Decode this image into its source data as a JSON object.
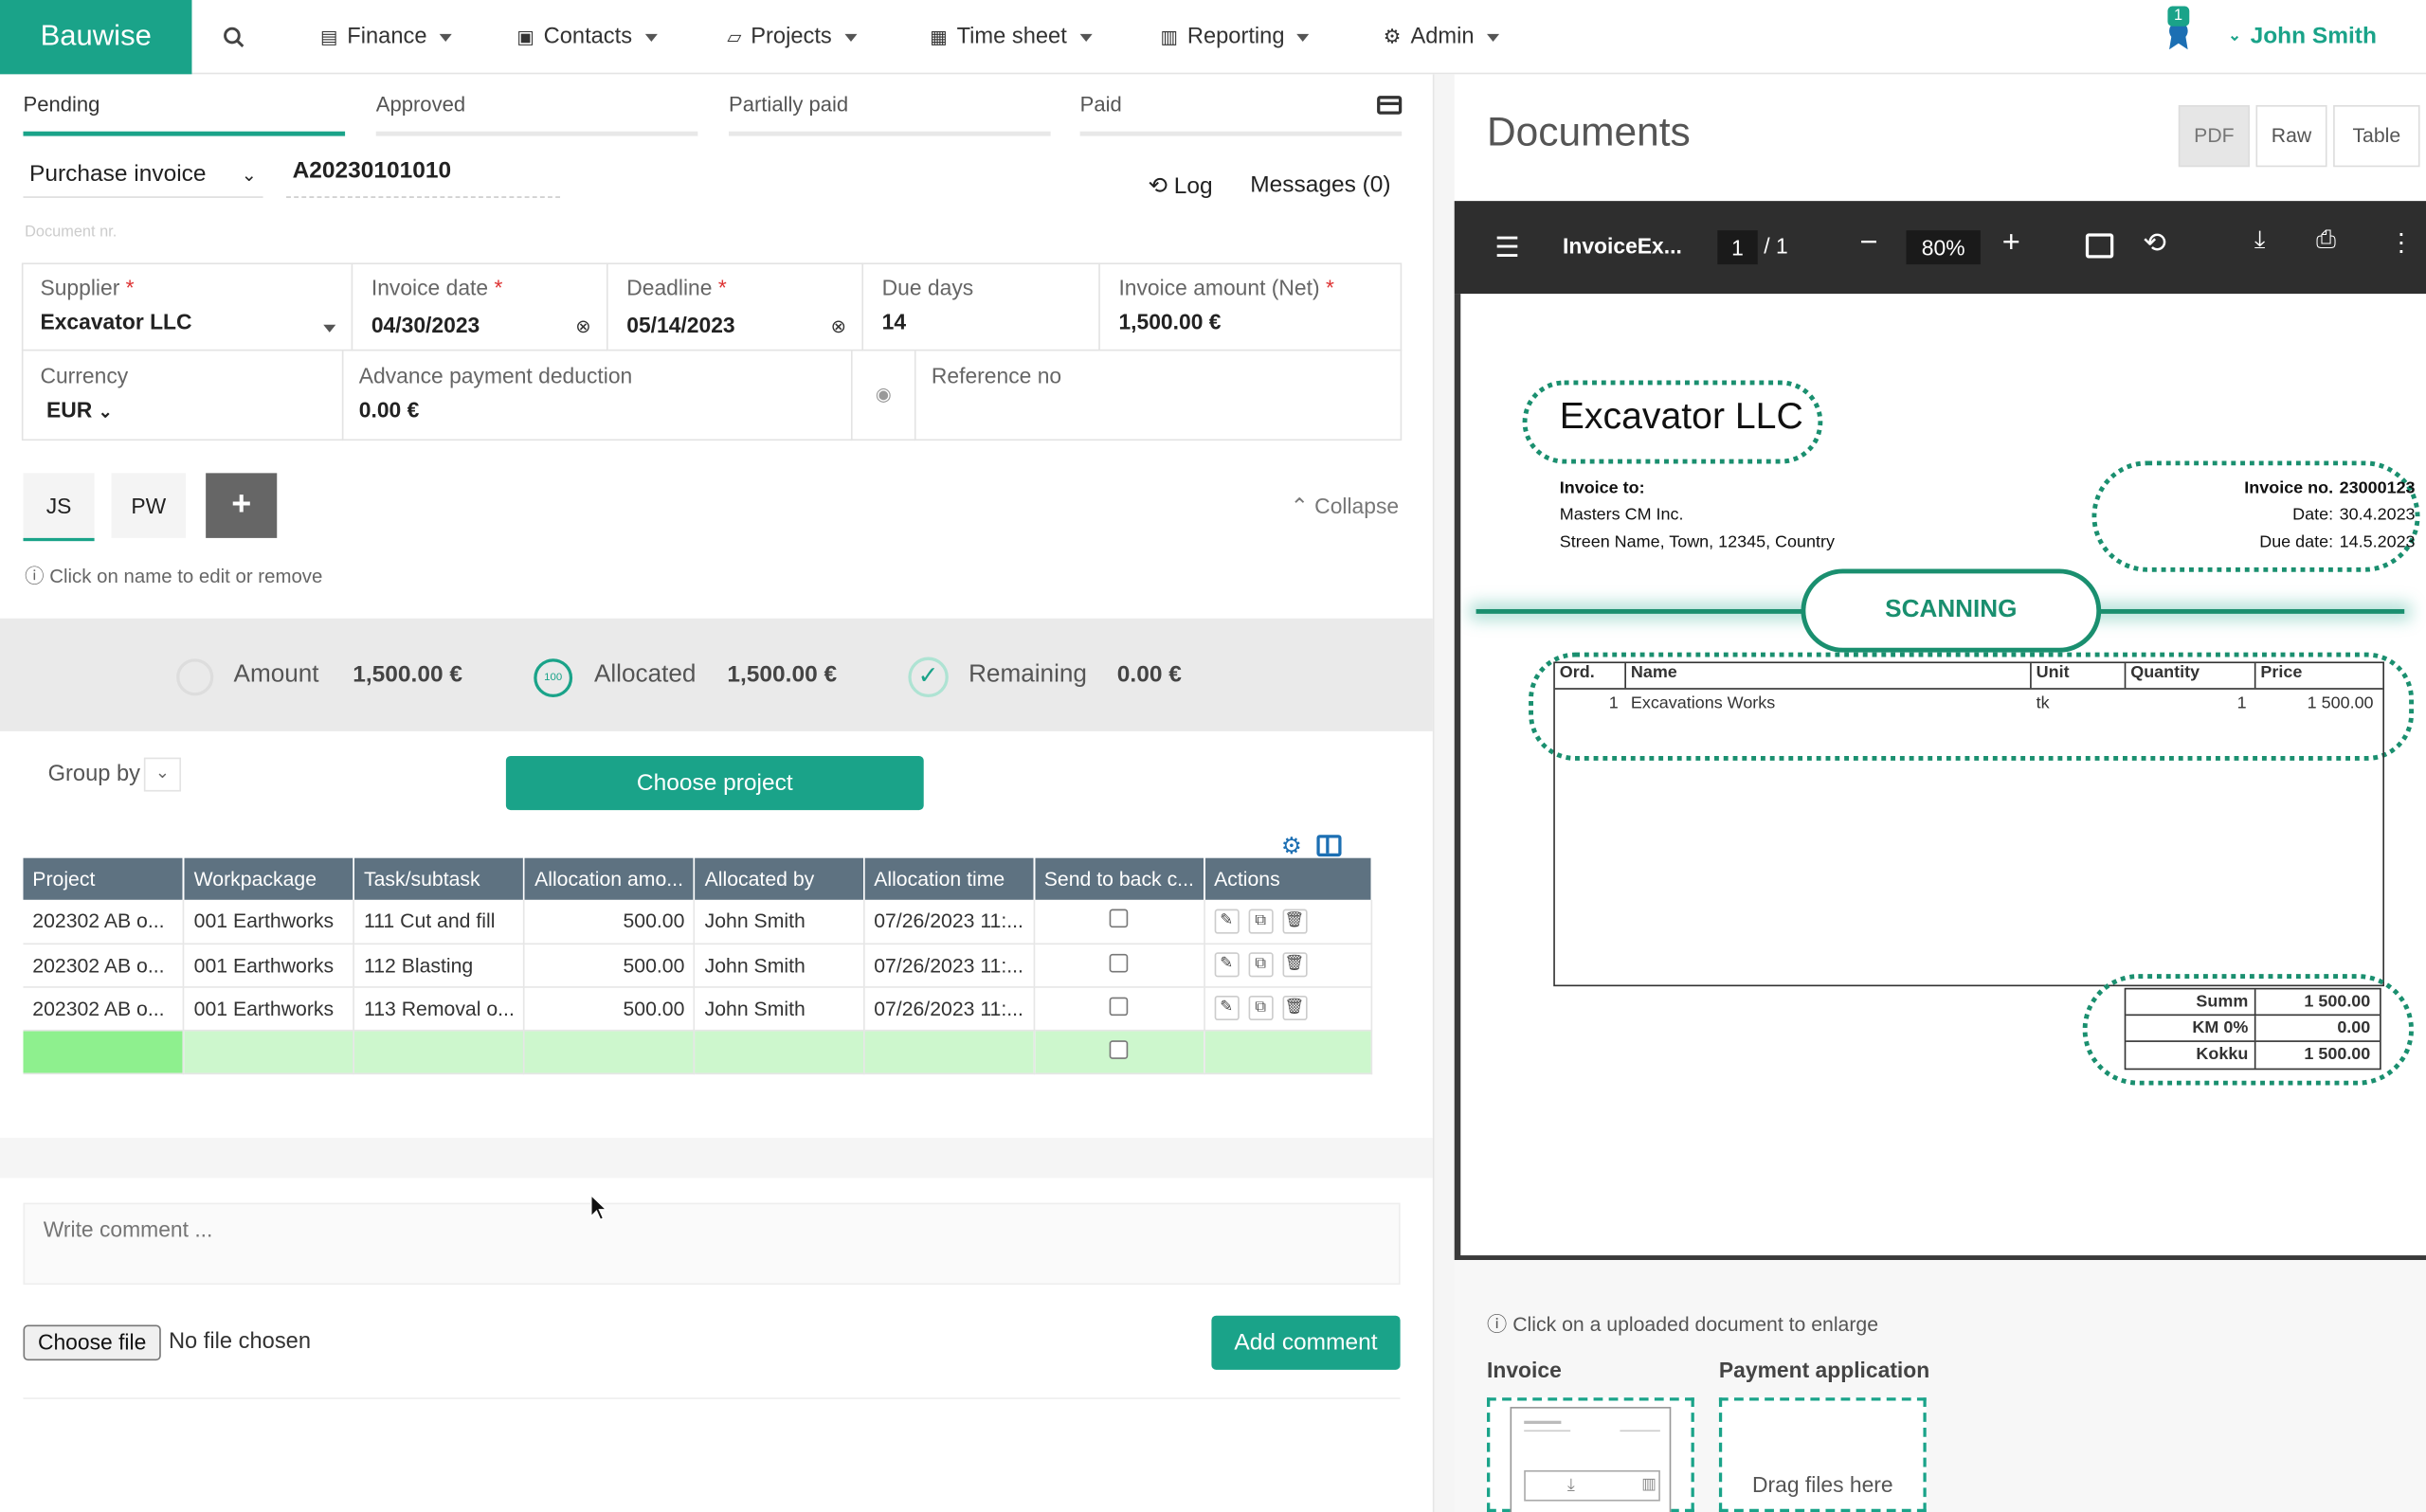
{
  "nav": {
    "brand": "Bauwise",
    "items": [
      "Finance",
      "Contacts",
      "Projects",
      "Time sheet",
      "Reporting",
      "Admin"
    ],
    "notification_count": "1",
    "user": "John Smith"
  },
  "status_tabs": [
    "Pending",
    "Approved",
    "Partially paid",
    "Paid"
  ],
  "doc": {
    "type": "Purchase invoice",
    "number": "A20230101010",
    "doc_nr_placeholder": "Document nr.",
    "log": "Log",
    "messages": "Messages (0)"
  },
  "fields": {
    "supplier_label": "Supplier",
    "supplier": "Excavator LLC",
    "invoice_date_label": "Invoice date",
    "invoice_date": "04/30/2023",
    "deadline_label": "Deadline",
    "deadline": "05/14/2023",
    "due_days_label": "Due days",
    "due_days": "14",
    "amount_label": "Invoice amount (Net)",
    "amount": "1,500.00 €",
    "currency_label": "Currency",
    "currency": "EUR",
    "advance_label": "Advance payment deduction",
    "advance": "0.00 €",
    "reference_label": "Reference no",
    "required_mark": "*"
  },
  "approvers": {
    "items": [
      "JS",
      "PW"
    ],
    "add": "+",
    "collapse": "Collapse",
    "hint": "Click on name to edit or remove"
  },
  "summary": {
    "amount_label": "Amount",
    "amount": "1,500.00 €",
    "allocated_badge": "100",
    "allocated_label": "Allocated",
    "allocated": "1,500.00 €",
    "remaining_label": "Remaining",
    "remaining": "0.00 €"
  },
  "group_by": "Group by",
  "choose_project": "Choose project",
  "table": {
    "headers": [
      "Project",
      "Workpackage",
      "Task/subtask",
      "Allocation amo...",
      "Allocated by",
      "Allocation time",
      "Send to back c...",
      "Actions"
    ],
    "rows": [
      [
        "202302 AB o...",
        "001 Earthworks",
        "111 Cut and fill",
        "500.00",
        "John Smith",
        "07/26/2023 11:..."
      ],
      [
        "202302 AB o...",
        "001 Earthworks",
        "112 Blasting",
        "500.00",
        "John Smith",
        "07/26/2023 11:..."
      ],
      [
        "202302 AB o...",
        "001 Earthworks",
        "113 Removal o...",
        "500.00",
        "John Smith",
        "07/26/2023 11:..."
      ]
    ]
  },
  "comment": {
    "placeholder": "Write comment ...",
    "choose_file": "Choose file",
    "no_file": "No file chosen",
    "add": "Add comment"
  },
  "documents": {
    "title": "Documents",
    "views": [
      "PDF",
      "Raw",
      "Table"
    ],
    "pdf_name": "InvoiceEx...",
    "page": "1",
    "pages": "/ 1",
    "zoom": "80%",
    "hint": "Click on a uploaded document to enlarge",
    "invoice_label": "Invoice",
    "payment_label": "Payment application",
    "drag": "Drag files here"
  },
  "invoice_doc": {
    "company": "Excavator LLC",
    "to_label": "Invoice to:",
    "to_name": "Masters CM Inc.",
    "to_address": "Streen Name, Town, 12345, Country",
    "no_label": "Invoice no.",
    "no": "23000123",
    "date_label": "Date:",
    "date": "30.4.2023",
    "due_label": "Due date:",
    "due": "14.5.2023",
    "scanning": "SCANNING",
    "cols": [
      "Ord.",
      "Name",
      "Unit",
      "Quantity",
      "Price"
    ],
    "line": [
      "1",
      "Excavations Works",
      "tk",
      "1",
      "1 500.00"
    ],
    "summ_label": "Summ",
    "summ": "1 500.00",
    "km_label": "KM 0%",
    "km": "0.00",
    "total_label": "Kokku",
    "total": "1 500.00"
  }
}
